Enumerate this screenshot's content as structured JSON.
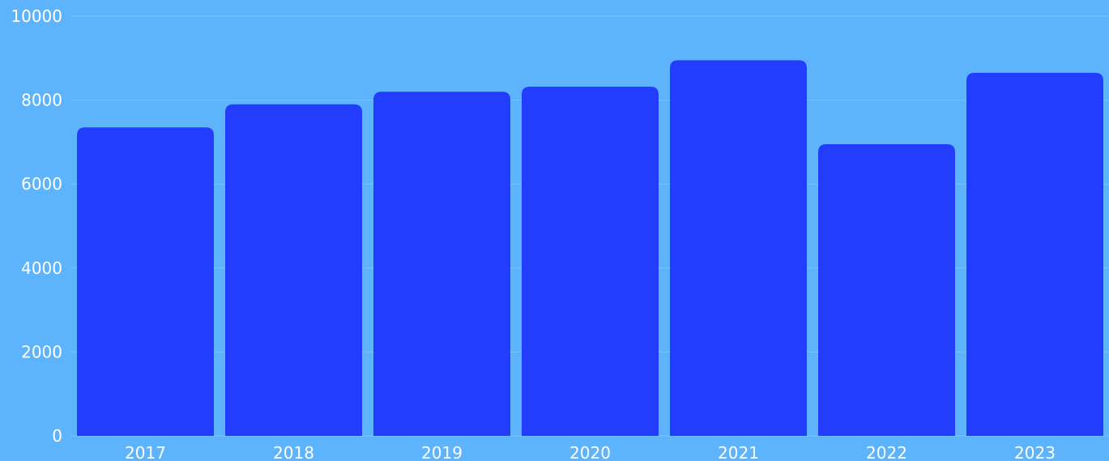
{
  "chart_data": {
    "type": "bar",
    "categories": [
      "2017",
      "2018",
      "2019",
      "2020",
      "2021",
      "2022",
      "2023"
    ],
    "values": [
      7350,
      7900,
      8200,
      8320,
      8950,
      6950,
      8650
    ],
    "title": "",
    "xlabel": "",
    "ylabel": "",
    "ylim": [
      0,
      10000
    ],
    "yticks": [
      0,
      2000,
      4000,
      6000,
      8000,
      10000
    ],
    "grid": true,
    "legend": "none"
  },
  "colors": {
    "background": "#5db4fc",
    "bar": "#233dff",
    "grid": "#7cc5ff",
    "text": "#ffffff"
  }
}
